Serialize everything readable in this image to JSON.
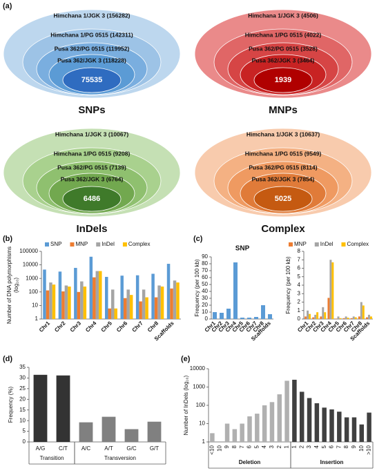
{
  "chart_data": [
    {
      "type": "nested",
      "panel_label": "(a)",
      "title": "SNPs",
      "labels": [
        "Himchana 1/JGK 3 (156282)",
        "Himchana 1/PG 0515 (142311)",
        "Pusa 362/PG 0515 (119952)",
        "Pusa 362/JGK 3 (118228)"
      ],
      "center": 75535,
      "colors": [
        "#bdd7ee",
        "#9dc3e6",
        "#7aaedf",
        "#5b9bd5",
        "#2f6cc0"
      ]
    },
    {
      "type": "nested",
      "title": "MNPs",
      "labels": [
        "Himchana 1/JGK 3 (4506)",
        "Himchana 1/PG 0515 (4022)",
        "Pusa 362/PG 0515 (3528)",
        "Pusa 362/JGK 3 (3464)"
      ],
      "center": 1939,
      "colors": [
        "#ea8a8a",
        "#e06666",
        "#d64545",
        "#c82323",
        "#b00000"
      ]
    },
    {
      "type": "nested",
      "title": "InDels",
      "labels": [
        "Himchana 1/JGK 3 (10067)",
        "Himchana 1/PG 0515 (9208)",
        "Pusa 362/PG 0515 (7139)",
        "Pusa 362/JGK 3 (6764)"
      ],
      "center": 6486,
      "colors": [
        "#c5e0b4",
        "#a9d18e",
        "#8fc06f",
        "#72a84f",
        "#3f7a2a"
      ]
    },
    {
      "type": "nested",
      "title": "Complex",
      "labels": [
        "Himchana 1/JGK 3 (10637)",
        "Himchana 1/PG 0515 (9549)",
        "Pusa 362/PG 0515 (8114)",
        "Pusa 362/JGK 3 (7854)"
      ],
      "center": 5025,
      "colors": [
        "#f8cbad",
        "#f4b183",
        "#ef9a61",
        "#e07b39",
        "#c55a11"
      ]
    },
    {
      "type": "bar",
      "panel_label": "(b)",
      "ylabel": [
        "Number of DNA polymorphisms",
        "(log₁₀)"
      ],
      "log_scale": true,
      "legend": "top",
      "categories": [
        "Chr1",
        "Chr2",
        "Chr3",
        "Chr4",
        "Chr5",
        "Chr6",
        "Chr7",
        "Chr8",
        "Scaffolds"
      ],
      "series": [
        {
          "name": "SNP",
          "color": "#5b9bd5",
          "values": [
            4500,
            3200,
            6000,
            40000,
            1300,
            1600,
            1700,
            2200,
            12000
          ]
        },
        {
          "name": "MNP",
          "color": "#ed7d31",
          "values": [
            130,
            110,
            100,
            1200,
            6,
            35,
            20,
            40,
            180
          ]
        },
        {
          "name": "InDel",
          "color": "#a5a5a5",
          "values": [
            500,
            300,
            600,
            3500,
            150,
            150,
            150,
            300,
            700
          ]
        },
        {
          "name": "Complex",
          "color": "#ffc000",
          "values": [
            350,
            250,
            250,
            3500,
            6,
            60,
            40,
            250,
            500
          ]
        }
      ],
      "ylim": [
        1,
        100000
      ],
      "yticks": [
        1,
        10,
        100,
        1000,
        10000,
        100000
      ]
    },
    {
      "type": "bar",
      "panel_label": "(c)",
      "title": "SNP",
      "ylabel": [
        "Frequency (per 100 kb)"
      ],
      "categories": [
        "Chr1",
        "Chr2",
        "Chr3",
        "Chr4",
        "Chr5",
        "Chr6",
        "Chr7",
        "Chr8",
        "Scaffolds"
      ],
      "values": [
        10,
        9,
        15,
        82,
        2,
        2,
        3,
        20,
        7
      ],
      "color": "#5b9bd5",
      "ylim": [
        0,
        90
      ],
      "yticks": [
        0,
        10,
        20,
        30,
        40,
        50,
        60,
        70,
        80,
        90
      ]
    },
    {
      "type": "bar",
      "ylabel": [
        "Frequency (per 100 kb)"
      ],
      "legend": "top",
      "categories": [
        "Chr1",
        "Chr2",
        "Chr3",
        "Chr4",
        "Chr5",
        "Chr6",
        "Chr7",
        "Chr8",
        "Scaffolds"
      ],
      "series": [
        {
          "name": "MNP",
          "color": "#ed7d31",
          "values": [
            0.3,
            0.2,
            0.3,
            2.5,
            0.05,
            0.1,
            0.1,
            0.3,
            0.2
          ]
        },
        {
          "name": "InDel",
          "color": "#a5a5a5",
          "values": [
            1.0,
            0.5,
            1.4,
            7.0,
            0.3,
            0.3,
            0.3,
            2.0,
            0.5
          ]
        },
        {
          "name": "Complex",
          "color": "#ffc000",
          "values": [
            0.6,
            0.8,
            0.8,
            6.7,
            0.1,
            0.15,
            0.2,
            1.6,
            0.3
          ]
        }
      ],
      "ylim": [
        0,
        8
      ],
      "yticks": [
        0,
        1,
        2,
        3,
        4,
        5,
        6,
        7,
        8
      ]
    },
    {
      "type": "bar",
      "panel_label": "(d)",
      "ylabel": [
        "Frequency (%)"
      ],
      "categories": [
        "A/G",
        "C/T",
        "A/C",
        "A/T",
        "G/C",
        "G/T"
      ],
      "series": [
        {
          "name": "Transition",
          "color": "#333333",
          "values": [
            31.5,
            31.2,
            null,
            null,
            null,
            null
          ]
        },
        {
          "name": "Transversion",
          "color": "#808080",
          "values": [
            null,
            null,
            9.2,
            11.8,
            6.0,
            9.5
          ]
        }
      ],
      "ylim": [
        0,
        35
      ],
      "yticks": [
        0,
        5,
        10,
        15,
        20,
        25,
        30,
        35
      ]
    },
    {
      "type": "bar",
      "panel_label": "(e)",
      "ylabel": [
        "Number of InDels (log₁₀)"
      ],
      "log_scale": true,
      "categories": [
        "<10",
        "10",
        "9",
        "8",
        "7",
        "6",
        "5",
        "4",
        "3",
        "2",
        "1",
        "1",
        "2",
        "3",
        "4",
        "5",
        "6",
        "7",
        "8",
        "9",
        "10",
        ">10"
      ],
      "series": [
        {
          "name": "Deletion",
          "color": "#b0b0b0",
          "values": [
            3,
            1,
            10,
            5,
            10,
            25,
            35,
            100,
            150,
            400,
            2200,
            null,
            null,
            null,
            null,
            null,
            null,
            null,
            null,
            null,
            null,
            null
          ]
        },
        {
          "name": "Insertion",
          "color": "#404040",
          "values": [
            null,
            null,
            null,
            null,
            null,
            null,
            null,
            null,
            null,
            null,
            null,
            2500,
            550,
            250,
            130,
            75,
            60,
            45,
            22,
            22,
            9,
            40
          ]
        }
      ],
      "ylim": [
        1,
        10000
      ],
      "yticks": [
        1,
        10,
        100,
        1000,
        10000
      ]
    }
  ]
}
